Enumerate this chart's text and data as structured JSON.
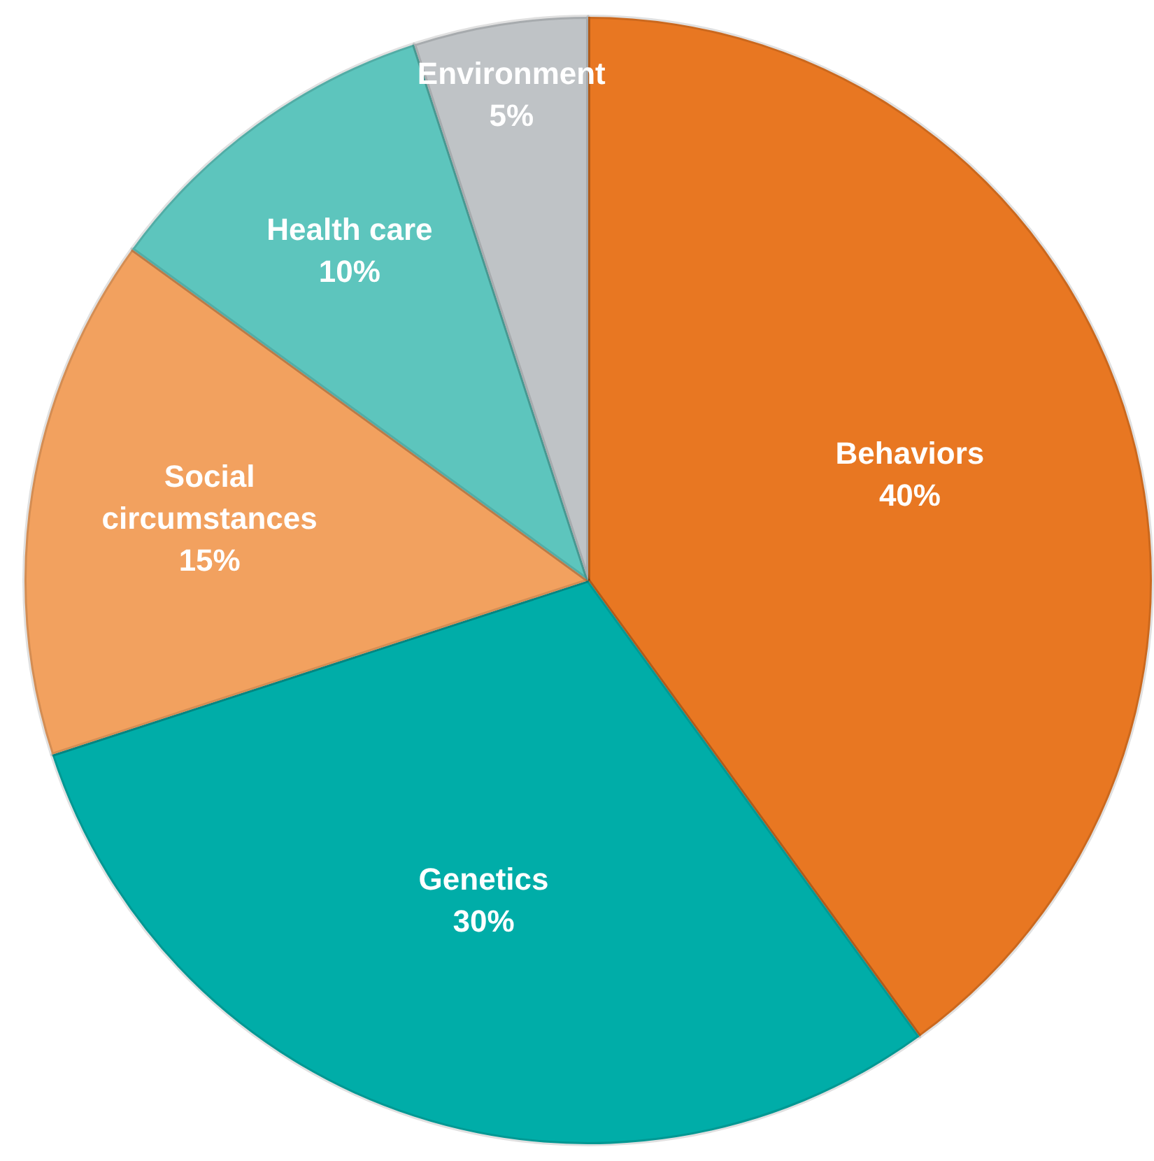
{
  "chart_data": {
    "type": "pie",
    "categories": [
      "Behaviors",
      "Genetics",
      "Social circumstances",
      "Health care",
      "Environment"
    ],
    "values": [
      40,
      30,
      15,
      10,
      5
    ],
    "colors": [
      "#e87722",
      "#00ada8",
      "#f2a15f",
      "#5dc5bd",
      "#bfc3c6"
    ],
    "value_labels": [
      "40%",
      "30%",
      "15%",
      "10%",
      "5%"
    ],
    "legend": false
  }
}
